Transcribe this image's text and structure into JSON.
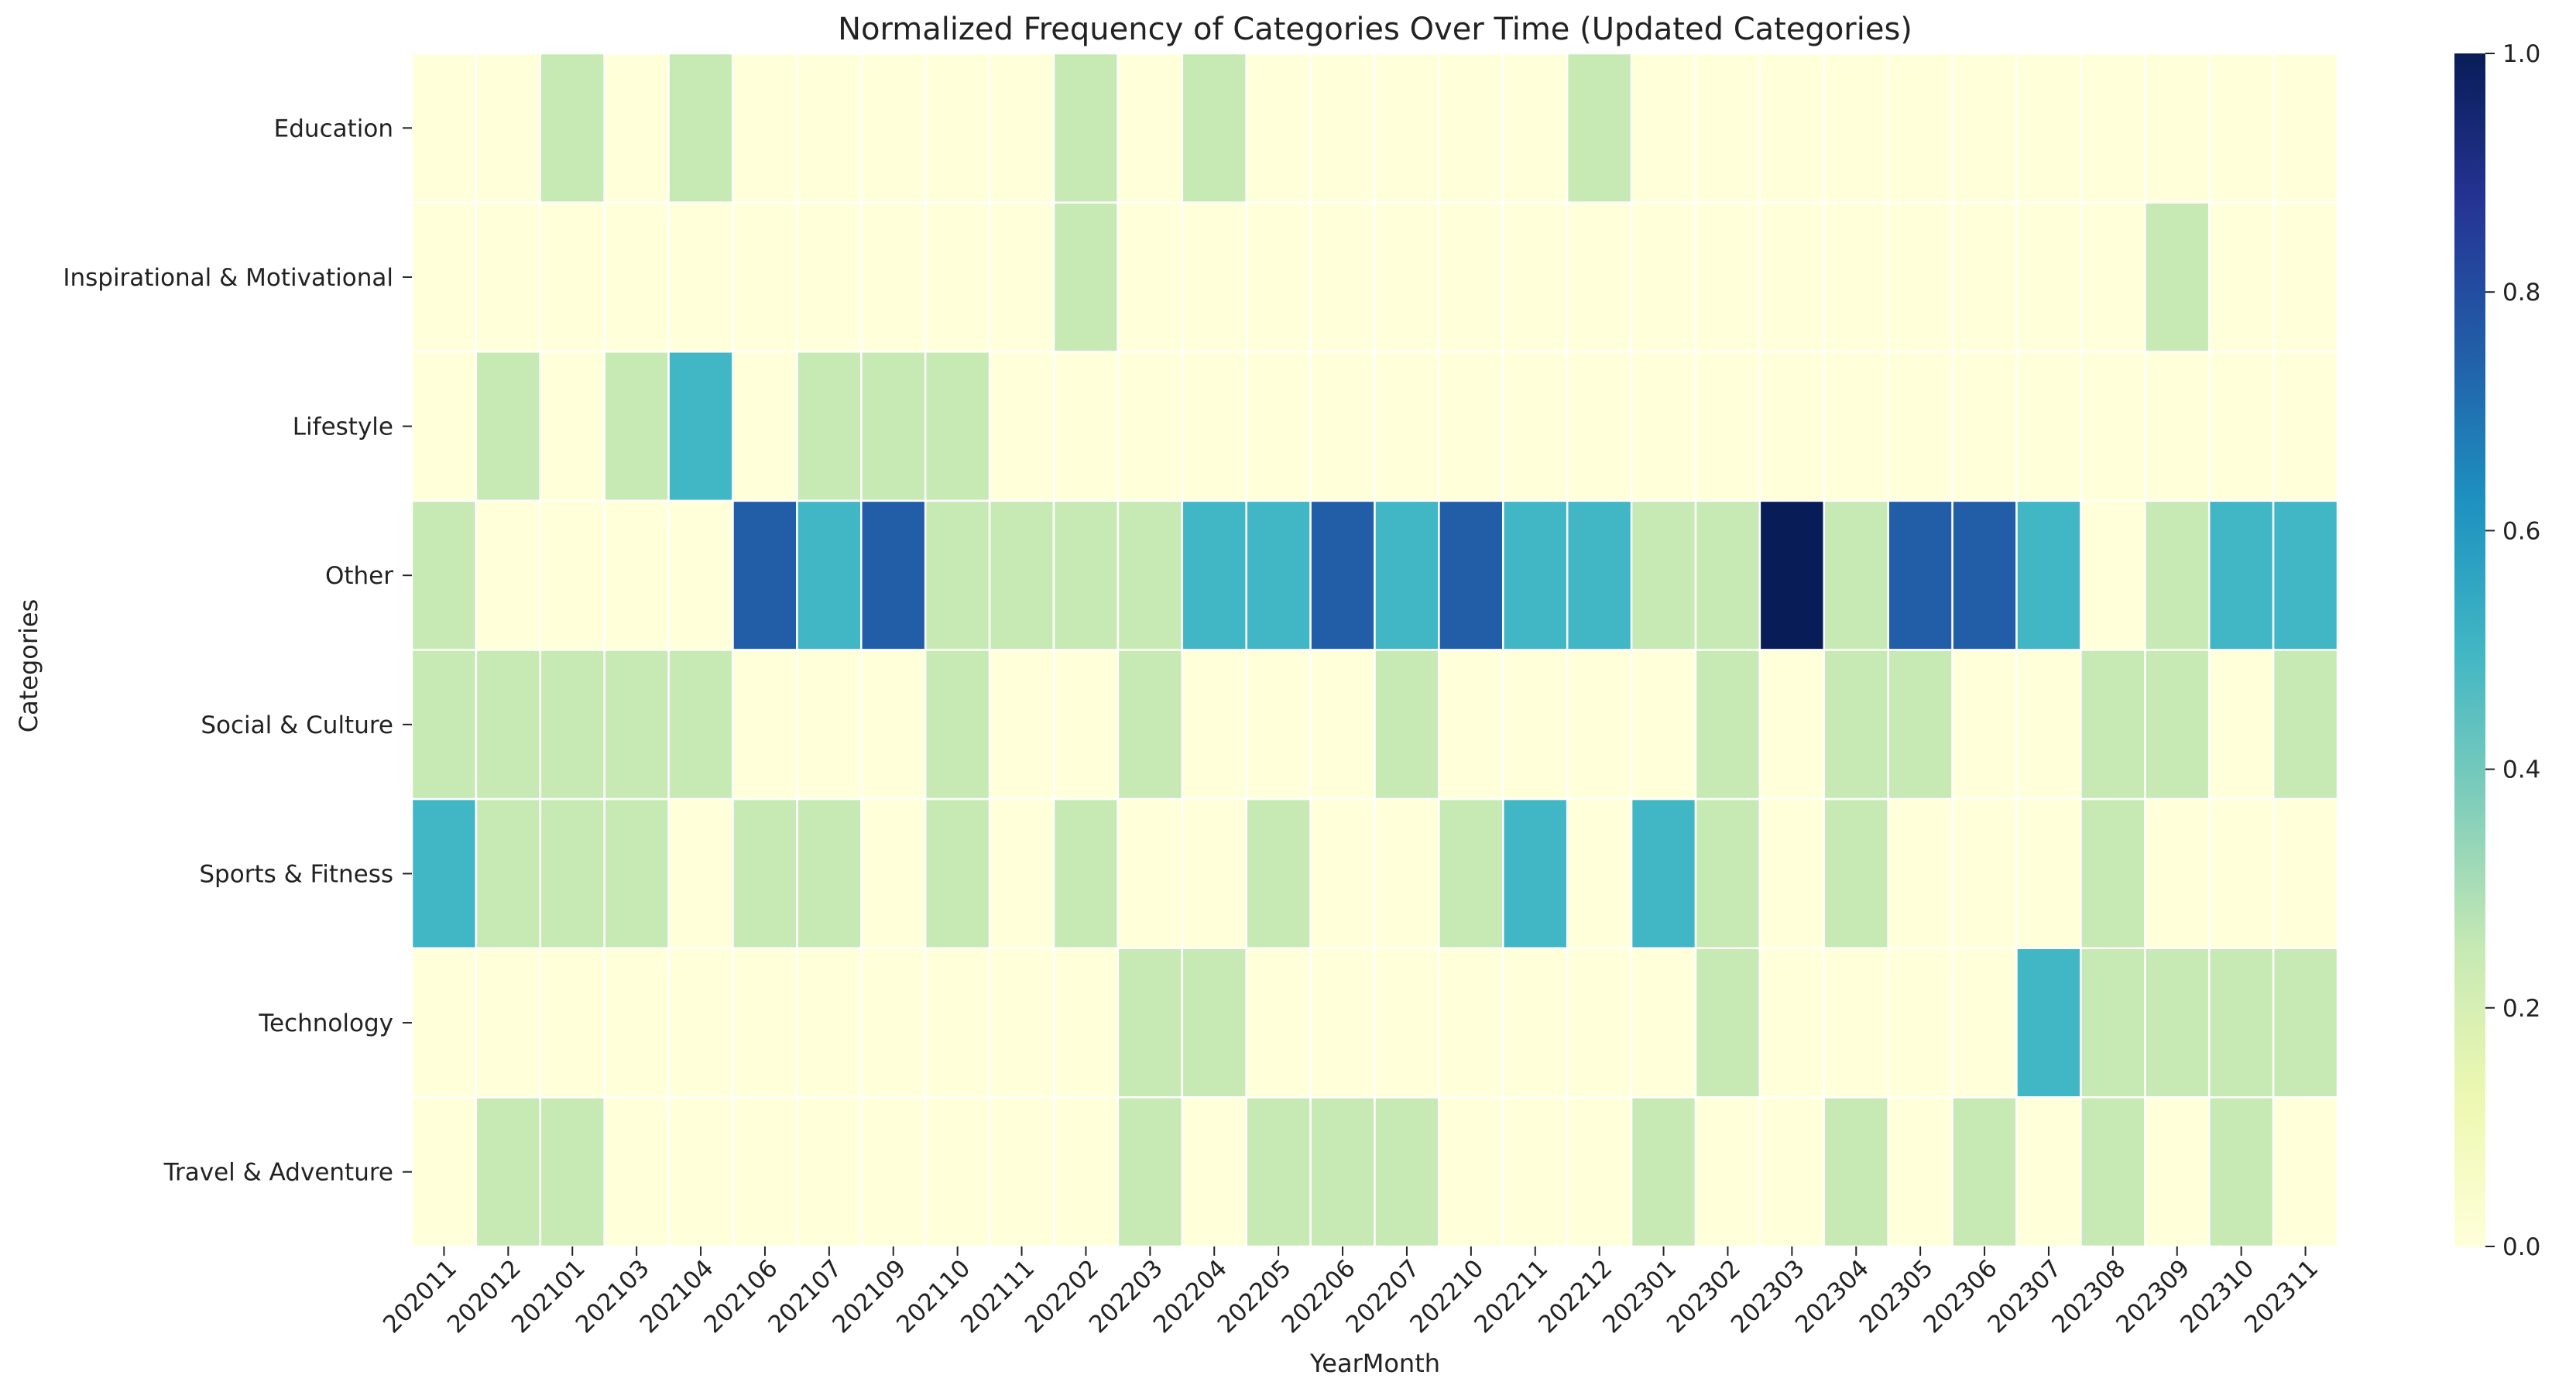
{
  "chart_data": {
    "type": "heatmap",
    "title": "Normalized Frequency of Categories Over Time (Updated Categories)",
    "xlabel": "YearMonth",
    "ylabel": "Categories",
    "x": [
      "202011",
      "202012",
      "202101",
      "202103",
      "202104",
      "202106",
      "202107",
      "202109",
      "202110",
      "202111",
      "202202",
      "202203",
      "202204",
      "202205",
      "202206",
      "202207",
      "202210",
      "202211",
      "202212",
      "202301",
      "202302",
      "202303",
      "202304",
      "202305",
      "202306",
      "202307",
      "202308",
      "202309",
      "202310",
      "202311"
    ],
    "y": [
      "Education",
      "Inspirational & Motivational",
      "Lifestyle",
      "Other",
      "Social & Culture",
      "Sports & Fitness",
      "Technology",
      "Travel & Adventure"
    ],
    "values": [
      [
        0,
        0,
        0.25,
        0,
        0.25,
        0,
        0,
        0,
        0,
        0,
        0.25,
        0,
        0.25,
        0,
        0,
        0,
        0,
        0,
        0.25,
        0,
        0,
        0,
        0,
        0,
        0,
        0,
        0,
        0,
        0,
        0
      ],
      [
        0,
        0,
        0,
        0,
        0,
        0,
        0,
        0,
        0,
        0,
        0.25,
        0,
        0,
        0,
        0,
        0,
        0,
        0,
        0,
        0,
        0,
        0,
        0,
        0,
        0,
        0,
        0,
        0.25,
        0,
        0
      ],
      [
        0,
        0.25,
        0,
        0.25,
        0.5,
        0,
        0.25,
        0.25,
        0.25,
        0,
        0,
        0,
        0,
        0,
        0,
        0,
        0,
        0,
        0,
        0,
        0,
        0,
        0,
        0,
        0,
        0,
        0,
        0,
        0,
        0
      ],
      [
        0.25,
        0,
        0,
        0,
        0,
        0.75,
        0.5,
        0.75,
        0.25,
        0.25,
        0.25,
        0.25,
        0.5,
        0.5,
        0.75,
        0.5,
        0.75,
        0.5,
        0.5,
        0.25,
        0.25,
        1,
        0.25,
        0.75,
        0.75,
        0.5,
        0,
        0.25,
        0.5,
        0.5
      ],
      [
        0.25,
        0.25,
        0.25,
        0.25,
        0.25,
        0,
        0,
        0,
        0.25,
        0,
        0,
        0.25,
        0,
        0,
        0,
        0.25,
        0,
        0,
        0,
        0,
        0.25,
        0,
        0.25,
        0.25,
        0,
        0,
        0.25,
        0.25,
        0,
        0.25
      ],
      [
        0.5,
        0.25,
        0.25,
        0.25,
        0,
        0.25,
        0.25,
        0,
        0.25,
        0,
        0.25,
        0,
        0,
        0.25,
        0,
        0,
        0.25,
        0.5,
        0,
        0.5,
        0.25,
        0,
        0.25,
        0,
        0,
        0,
        0.25,
        0,
        0,
        0
      ],
      [
        0,
        0,
        0,
        0,
        0,
        0,
        0,
        0,
        0,
        0,
        0,
        0.25,
        0.25,
        0,
        0,
        0,
        0,
        0,
        0,
        0,
        0.25,
        0,
        0,
        0,
        0,
        0.5,
        0.25,
        0.25,
        0.25,
        0.25
      ],
      [
        0,
        0.25,
        0.25,
        0,
        0,
        0,
        0,
        0,
        0,
        0,
        0,
        0.25,
        0,
        0.25,
        0.25,
        0.25,
        0,
        0,
        0,
        0.25,
        0,
        0,
        0.25,
        0,
        0.25,
        0,
        0.25,
        0,
        0.25,
        0
      ]
    ],
    "colormap": "YlGnBu",
    "vmin": 0,
    "vmax": 1,
    "colorbar_ticks": [
      "0.0",
      "0.2",
      "0.4",
      "0.6",
      "0.8",
      "1.0"
    ],
    "grid": false
  }
}
